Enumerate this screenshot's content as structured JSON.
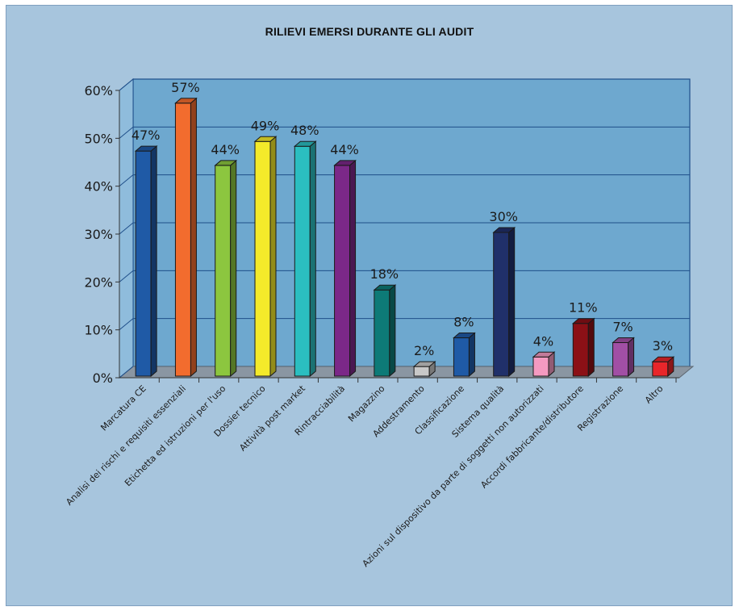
{
  "chart_data": {
    "type": "bar",
    "title": "RILIEVI EMERSI DURANTE GLI AUDIT",
    "xlabel": "",
    "ylabel": "",
    "ylim": [
      0,
      60
    ],
    "yticks": [
      "0%",
      "10%",
      "20%",
      "30%",
      "40%",
      "50%",
      "60%"
    ],
    "grid": true,
    "three_d": true,
    "categories": [
      "Marcatura CE",
      "Analisi dei rischi e requisiti essenziali",
      "Etichetta ed istruzioni per l'uso",
      "Dossier tecnico",
      "Attività post market",
      "Rintracciabilità",
      "Magazzino",
      "Addestramento",
      "Classificazione",
      "Sistema qualità",
      "Azioni sul dispositivo da parte di soggetti non autorizzati",
      "Accordi fabbricante/distributore",
      "Registrazione",
      "Altro"
    ],
    "values": [
      47,
      57,
      44,
      49,
      48,
      44,
      18,
      2,
      8,
      30,
      4,
      11,
      7,
      3
    ],
    "value_labels": [
      "47%",
      "57%",
      "44%",
      "49%",
      "48%",
      "44%",
      "18%",
      "2%",
      "8%",
      "30%",
      "4%",
      "11%",
      "7%",
      "3%"
    ],
    "colors": [
      "#1f5aa6",
      "#f26c2e",
      "#8cc63f",
      "#f4ea2a",
      "#2bbec0",
      "#7b2888",
      "#0d7a77",
      "#c8c8c8",
      "#1f5aa6",
      "#20306a",
      "#f49ac1",
      "#8b1016",
      "#a14fa5",
      "#e8262b"
    ],
    "plot_color": "#6ea8cf",
    "floor_color": "#8a96a2"
  }
}
